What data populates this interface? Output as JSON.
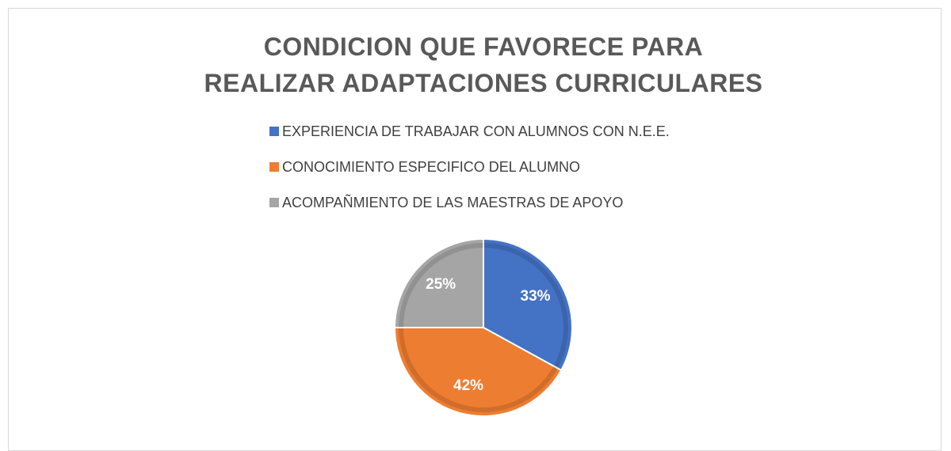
{
  "chart_data": {
    "type": "pie",
    "title": "CONDICION QUE FAVORECE PARA REALIZAR ADAPTACIONES CURRICULARES",
    "categories": [
      "EXPERIENCIA DE TRABAJAR CON ALUMNOS CON N.E.E.",
      "CONOCIMIENTO ESPECIFICO DEL ALUMNO",
      "ACOMPAÑMIENTO DE LAS MAESTRAS DE APOYO"
    ],
    "values": [
      33,
      42,
      25
    ],
    "value_labels": [
      "33%",
      "42%",
      "25%"
    ],
    "colors": [
      "#4472c4",
      "#ed7d31",
      "#a5a5a5"
    ],
    "legend": "top"
  }
}
